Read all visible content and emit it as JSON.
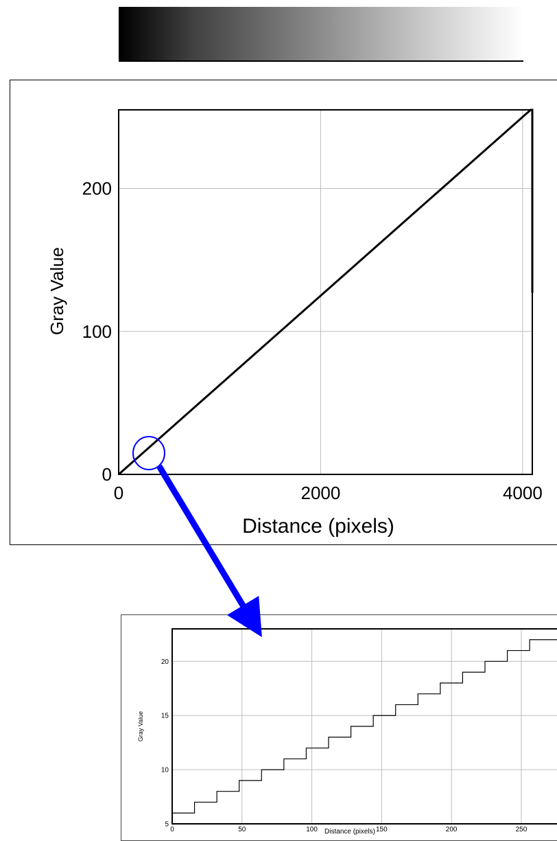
{
  "chart_data": [
    {
      "type": "line",
      "xlabel": "Distance (pixels)",
      "ylabel": "Gray Value",
      "xlim": [
        0,
        4096
      ],
      "ylim": [
        0,
        255
      ],
      "x_ticks": [
        0,
        2000,
        4000
      ],
      "y_ticks": [
        0,
        100,
        200
      ],
      "grid": true,
      "series": [
        {
          "x": [
            0,
            4080,
            4096,
            4096
          ],
          "y": [
            0,
            255,
            255,
            127
          ]
        }
      ],
      "line_color": "#000000"
    },
    {
      "type": "line",
      "step": true,
      "xlabel": "Distance (pixels)",
      "ylabel": "Gray Value",
      "xlim": [
        0,
        280
      ],
      "ylim": [
        5,
        23
      ],
      "x_ticks": [
        0,
        50,
        100,
        150,
        200,
        250
      ],
      "y_ticks": [
        5,
        10,
        15,
        20
      ],
      "grid": true,
      "series": [
        {
          "x": [
            0,
            16,
            32,
            48,
            64,
            80,
            96,
            112,
            128,
            144,
            160,
            176,
            192,
            208,
            224,
            240,
            256,
            280
          ],
          "y": [
            6,
            7,
            8,
            9,
            10,
            11,
            12,
            13,
            14,
            15,
            16,
            17,
            18,
            19,
            20,
            21,
            22,
            22
          ]
        }
      ],
      "line_color": "#000000"
    }
  ],
  "annotation": {
    "arrow_color": "#0000ff",
    "circle_color": "#0000ff"
  }
}
